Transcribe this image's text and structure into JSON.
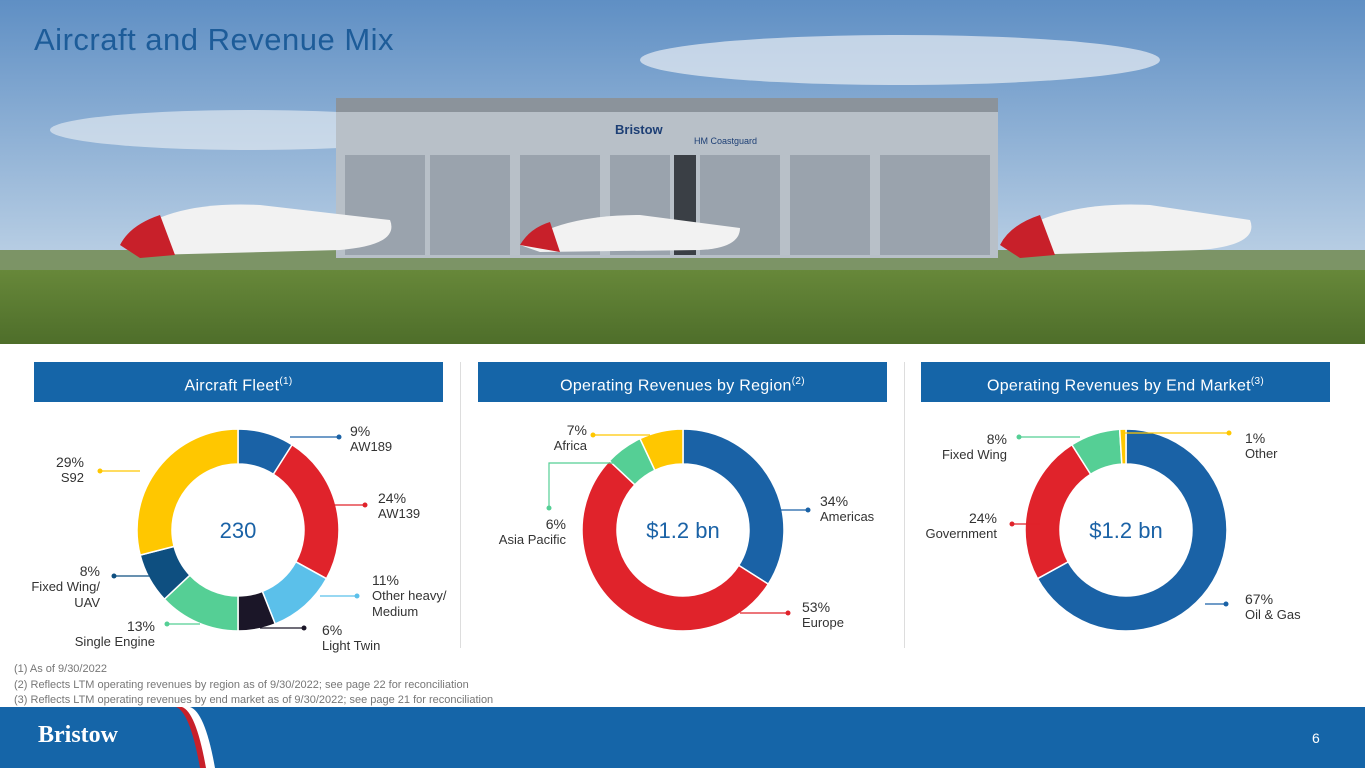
{
  "title": "Aircraft and Revenue Mix",
  "chart_data": [
    {
      "type": "donut",
      "title": "Aircraft Fleet",
      "title_note": "(1)",
      "center_label": "230",
      "categories": [
        "AW189",
        "AW139",
        "Other heavy/\nMedium",
        "Light Twin",
        "Single Engine",
        "Fixed Wing/\nUAV",
        "S92"
      ],
      "values": [
        9,
        24,
        11,
        6,
        13,
        8,
        29
      ],
      "value_labels": [
        "9%",
        "24%",
        "11%",
        "6%",
        "13%",
        "8%",
        "29%"
      ],
      "colors": [
        "#1a62a6",
        "#e0232b",
        "#5bc0ea",
        "#1b1628",
        "#55cf95",
        "#0e4f80",
        "#ffc700"
      ]
    },
    {
      "type": "donut",
      "title": "Operating Revenues by Region",
      "title_note": "(2)",
      "center_label": "$1.2 bn",
      "categories": [
        "Americas",
        "Europe",
        "Asia Pacific",
        "Africa"
      ],
      "values": [
        34,
        53,
        6,
        7
      ],
      "value_labels": [
        "34%",
        "53%",
        "6%",
        "7%"
      ],
      "colors": [
        "#1a62a6",
        "#e0232b",
        "#55cf95",
        "#ffc700"
      ]
    },
    {
      "type": "donut",
      "title": "Operating Revenues by End Market",
      "title_note": "(3)",
      "center_label": "$1.2 bn",
      "categories": [
        "Oil & Gas",
        "Government",
        "Fixed Wing",
        "Other"
      ],
      "values": [
        67,
        24,
        8,
        1
      ],
      "value_labels": [
        "67%",
        "24%",
        "8%",
        "1%"
      ],
      "colors": [
        "#1a62a6",
        "#e0232b",
        "#55cf95",
        "#ffc700"
      ]
    }
  ],
  "footnotes": [
    "(1) As of 9/30/2022",
    "(2) Reflects LTM operating revenues by region as of 9/30/2022; see page 22 for reconciliation",
    "(3) Reflects LTM operating revenues by end market as of 9/30/2022; see page 21 for reconciliation"
  ],
  "logo": "Bristow",
  "page_number": "6"
}
